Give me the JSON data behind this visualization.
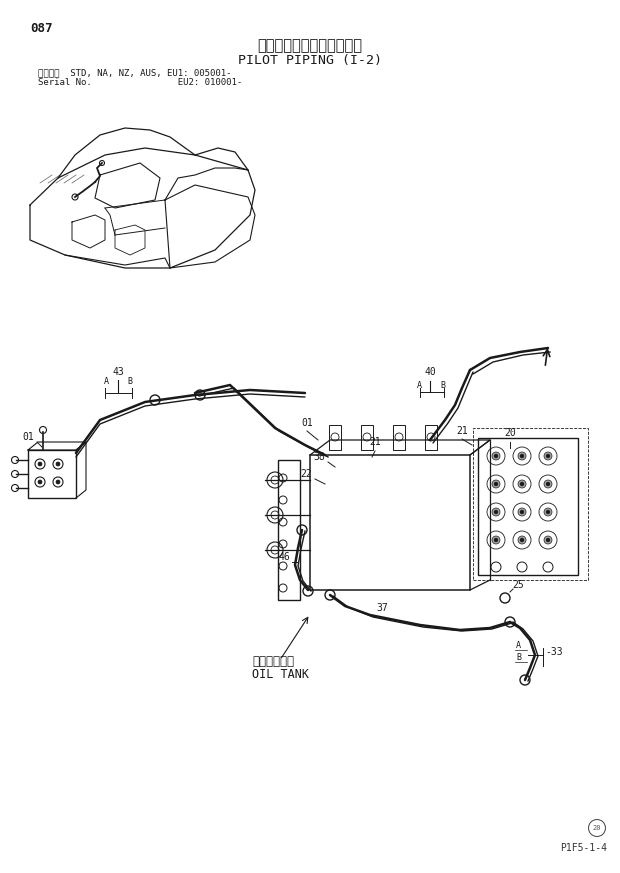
{
  "title_jp": "パイロット配管（１－２）",
  "title_en": "PILOT PIPING (I-2)",
  "page_num": "087",
  "serial_line1": "適用号機  STD, NA, NZ, AUS, EU1: 005001-",
  "serial_line2": "Serial No.                EU2: 010001-",
  "footer": "P1F5-1-4",
  "bg_color": "#ffffff",
  "line_color": "#1a1a1a",
  "text_color": "#1a1a1a"
}
